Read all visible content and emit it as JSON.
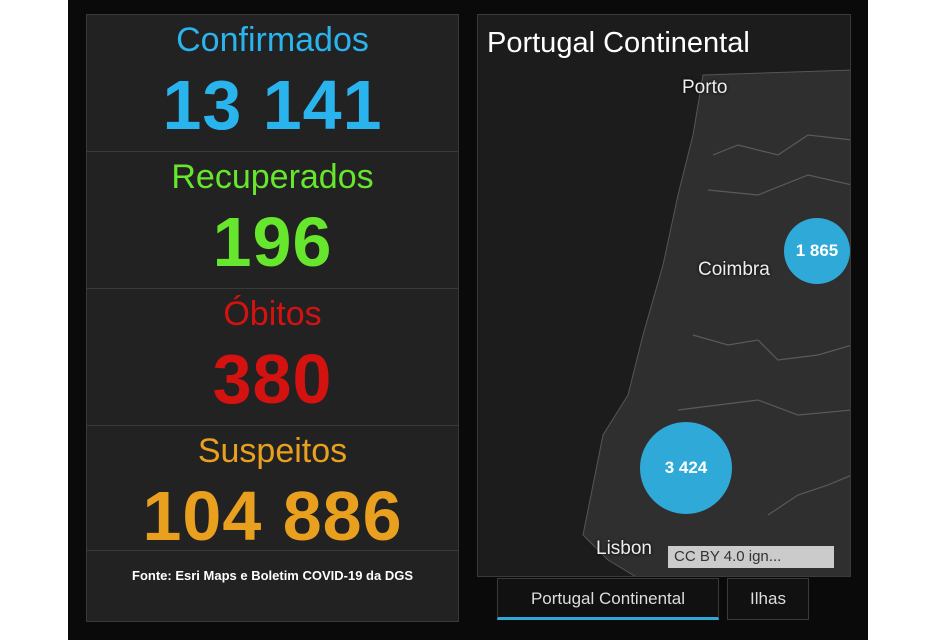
{
  "stats": [
    {
      "label": "Confirmados",
      "value": "13 141"
    },
    {
      "label": "Recuperados",
      "value": "196"
    },
    {
      "label": "Óbitos",
      "value": "380"
    },
    {
      "label": "Suspeitos",
      "value": "104 886"
    }
  ],
  "source": "Fonte:  Esri Maps e Boletim COVID-19 da DGS",
  "map": {
    "title": "Portugal Continental",
    "places": [
      "Porto",
      "Coimbra",
      "Lisbon"
    ],
    "clusters": [
      "1 865",
      "3 424"
    ],
    "attribution": "CC BY 4.0 ign..."
  },
  "tabs": [
    "Portugal Continental",
    "Ilhas"
  ]
}
